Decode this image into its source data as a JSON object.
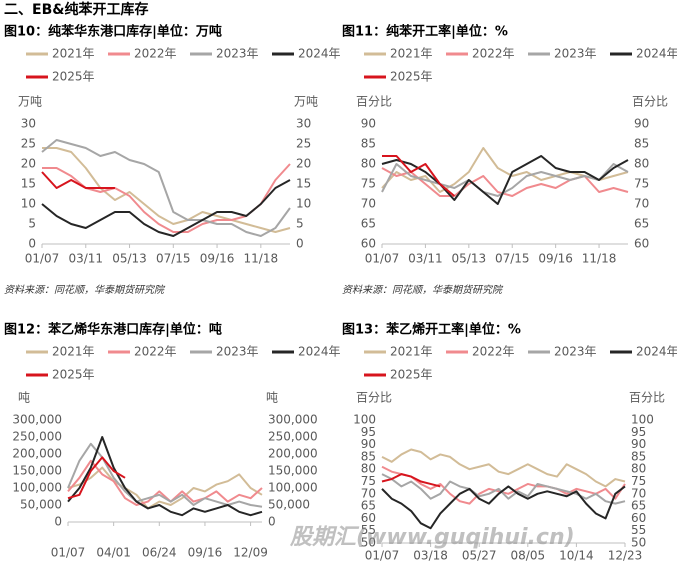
{
  "section_title": "二、EB&纯苯开工库存",
  "watermark": "股期汇(www.guqihui.cn)",
  "chart_data": [
    {
      "type": "line",
      "title": "图10：纯苯华东港口库存|单位：万吨",
      "y_label": "万吨",
      "y2_label": "万吨",
      "source": "资料来源：同花顺，华泰期货研究院",
      "categories": [
        "01/07",
        null,
        null,
        "03/11",
        null,
        null,
        "05/13",
        null,
        null,
        "07/15",
        null,
        null,
        "09/16",
        null,
        null,
        "11/18",
        null,
        null
      ],
      "ylim": [
        0,
        30
      ],
      "yticks": [
        0,
        5,
        10,
        15,
        20,
        25,
        30
      ],
      "y2lim": [
        0,
        30
      ],
      "y2ticks": [
        0,
        5,
        10,
        15,
        20,
        25,
        30
      ],
      "series": [
        {
          "name": "2021年",
          "color": "#d2bc97",
          "values": [
            24,
            24,
            23,
            19,
            14,
            11,
            13,
            10,
            7,
            5,
            6,
            8,
            7,
            6,
            5,
            4,
            3,
            4
          ]
        },
        {
          "name": "2022年",
          "color": "#f08a8e",
          "values": [
            19,
            19,
            17,
            14,
            13,
            14,
            12,
            8,
            5,
            3,
            3,
            5,
            6,
            6,
            7,
            10,
            16,
            20
          ]
        },
        {
          "name": "2023年",
          "color": "#a6a6a6",
          "values": [
            23,
            26,
            25,
            24,
            22,
            23,
            21,
            20,
            18,
            8,
            6,
            6,
            5,
            5,
            3,
            2,
            4,
            9
          ]
        },
        {
          "name": "2024年",
          "color": "#262626",
          "values": [
            10,
            7,
            5,
            4,
            6,
            8,
            8,
            5,
            3,
            2,
            4,
            6,
            8,
            8,
            7,
            10,
            14,
            16
          ]
        },
        {
          "name": "2025年",
          "color": "#d7141d",
          "values": [
            18,
            14,
            16,
            14,
            14,
            14,
            null,
            null,
            null,
            null,
            null,
            null,
            null,
            null,
            null,
            null,
            null,
            null
          ]
        }
      ]
    },
    {
      "type": "line",
      "title": "图11：纯苯开工率|单位：%",
      "y_label": "百分比",
      "y2_label": "百分比",
      "source": "资料来源：同花顺，华泰期货研究院",
      "categories": [
        "01/07",
        null,
        null,
        "03/11",
        null,
        null,
        "05/13",
        null,
        null,
        "07/15",
        null,
        null,
        "09/16",
        null,
        null,
        "11/18",
        null,
        null
      ],
      "ylim": [
        60,
        90
      ],
      "yticks": [
        60,
        65,
        70,
        75,
        80,
        85,
        90
      ],
      "y2lim": [
        60,
        90
      ],
      "y2ticks": [
        60,
        65,
        70,
        75,
        80,
        85,
        90
      ],
      "series": [
        {
          "name": "2021年",
          "color": "#d2bc97",
          "values": [
            74,
            78,
            76,
            77,
            73,
            75,
            78,
            84,
            79,
            77,
            78,
            76,
            77,
            78,
            77,
            76,
            77,
            78
          ]
        },
        {
          "name": "2022年",
          "color": "#f08a8e",
          "values": [
            79,
            77,
            78,
            75,
            72,
            72,
            75,
            77,
            73,
            72,
            74,
            75,
            74,
            76,
            77,
            73,
            74,
            73
          ]
        },
        {
          "name": "2023年",
          "color": "#a6a6a6",
          "values": [
            73,
            80,
            77,
            76,
            75,
            74,
            76,
            73,
            72,
            74,
            77,
            78,
            77,
            76,
            77,
            76,
            80,
            78
          ]
        },
        {
          "name": "2024年",
          "color": "#262626",
          "values": [
            80,
            81,
            80,
            78,
            75,
            71,
            76,
            73,
            70,
            78,
            80,
            82,
            79,
            78,
            78,
            76,
            79,
            81
          ]
        },
        {
          "name": "2025年",
          "color": "#d7141d",
          "values": [
            82,
            82,
            78,
            80,
            75,
            72,
            null,
            null,
            null,
            null,
            null,
            null,
            null,
            null,
            null,
            null,
            null,
            null
          ]
        }
      ]
    },
    {
      "type": "line",
      "title": "图12：苯乙烯华东港口库存|单位：吨",
      "y_label": "吨",
      "y2_label": "吨",
      "categories": [
        "01/07",
        null,
        null,
        null,
        "04/01",
        null,
        null,
        null,
        "06/24",
        null,
        null,
        null,
        "09/16",
        null,
        null,
        null,
        "12/09",
        null
      ],
      "ylim": [
        0,
        300000
      ],
      "yticks": [
        0,
        {
          "value": 50000,
          "label": "50,000"
        },
        {
          "value": 100000,
          "label": "100,000"
        },
        {
          "value": 150000,
          "label": "150,000"
        },
        {
          "value": 200000,
          "label": "200,000"
        },
        {
          "value": 250000,
          "label": "250,000"
        },
        {
          "value": 300000,
          "label": "300,000"
        }
      ],
      "y2lim": [
        0,
        300000
      ],
      "y2ticks": [
        0,
        {
          "value": 50000,
          "label": "50,000"
        },
        {
          "value": 100000,
          "label": "100,000"
        },
        {
          "value": 150000,
          "label": "150,000"
        },
        {
          "value": 200000,
          "label": "200,000"
        },
        {
          "value": 250000,
          "label": "250,000"
        },
        {
          "value": 300000,
          "label": "300,000"
        }
      ],
      "series": [
        {
          "name": "2021年",
          "color": "#d2bc97",
          "values": [
            100000,
            110000,
            130000,
            160000,
            120000,
            100000,
            80000,
            40000,
            60000,
            50000,
            70000,
            100000,
            90000,
            110000,
            120000,
            140000,
            100000,
            80000
          ]
        },
        {
          "name": "2022年",
          "color": "#f08a8e",
          "values": [
            90000,
            130000,
            180000,
            140000,
            120000,
            70000,
            50000,
            60000,
            90000,
            60000,
            90000,
            60000,
            70000,
            90000,
            60000,
            80000,
            70000,
            100000
          ]
        },
        {
          "name": "2023年",
          "color": "#a6a6a6",
          "values": [
            100000,
            180000,
            230000,
            190000,
            130000,
            90000,
            60000,
            70000,
            80000,
            60000,
            80000,
            50000,
            70000,
            60000,
            50000,
            60000,
            50000,
            45000
          ]
        },
        {
          "name": "2024年",
          "color": "#262626",
          "values": [
            60000,
            100000,
            160000,
            250000,
            160000,
            100000,
            60000,
            40000,
            50000,
            30000,
            20000,
            40000,
            30000,
            40000,
            50000,
            30000,
            20000,
            30000
          ]
        },
        {
          "name": "2025年",
          "color": "#d7141d",
          "values": [
            70000,
            80000,
            150000,
            190000,
            150000,
            130000,
            null,
            null,
            null,
            null,
            null,
            null,
            null,
            null,
            null,
            null,
            null,
            null
          ]
        }
      ]
    },
    {
      "type": "line",
      "title": "图13：苯乙烯开工率|单位：%",
      "y_label": "百分比",
      "y2_label": "百分比",
      "categories": [
        "01/07",
        null,
        null,
        null,
        null,
        "03/18",
        null,
        null,
        null,
        null,
        "05/27",
        null,
        null,
        null,
        null,
        "08/05",
        null,
        null,
        null,
        null,
        "10/14",
        null,
        null,
        null,
        null,
        "12/23"
      ],
      "ylim": [
        50,
        100
      ],
      "yticks": [
        50,
        55,
        60,
        65,
        70,
        75,
        80,
        85,
        90,
        95,
        100
      ],
      "y2lim": [
        50,
        100
      ],
      "y2ticks": [
        50,
        55,
        60,
        65,
        70,
        75,
        80,
        85,
        90,
        95,
        100
      ],
      "series": [
        {
          "name": "2021年",
          "color": "#d2bc97",
          "values": [
            85,
            83,
            86,
            88,
            87,
            84,
            86,
            85,
            82,
            80,
            81,
            82,
            79,
            78,
            80,
            82,
            80,
            78,
            77,
            82,
            80,
            78,
            75,
            73,
            76,
            75
          ]
        },
        {
          "name": "2022年",
          "color": "#f08a8e",
          "values": [
            81,
            79,
            78,
            77,
            74,
            72,
            74,
            70,
            67,
            66,
            70,
            72,
            71,
            70,
            72,
            74,
            73,
            73,
            72,
            70,
            72,
            71,
            70,
            72,
            68,
            74
          ]
        },
        {
          "name": "2023年",
          "color": "#a6a6a6",
          "values": [
            78,
            76,
            73,
            75,
            72,
            68,
            70,
            75,
            73,
            72,
            69,
            70,
            72,
            68,
            71,
            69,
            74,
            73,
            72,
            71,
            70,
            68,
            70,
            67,
            66,
            67
          ]
        },
        {
          "name": "2024年",
          "color": "#262626",
          "values": [
            72,
            68,
            66,
            63,
            58,
            56,
            62,
            66,
            70,
            72,
            68,
            66,
            70,
            73,
            70,
            68,
            70,
            71,
            70,
            69,
            71,
            66,
            62,
            60,
            70,
            73
          ]
        },
        {
          "name": "2025年",
          "color": "#d7141d",
          "values": [
            75,
            76,
            78,
            77,
            75,
            74,
            73,
            null,
            null,
            null,
            null,
            null,
            null,
            null,
            null,
            null,
            null,
            null,
            null,
            null,
            null,
            null,
            null,
            null,
            null,
            null
          ]
        }
      ]
    }
  ]
}
